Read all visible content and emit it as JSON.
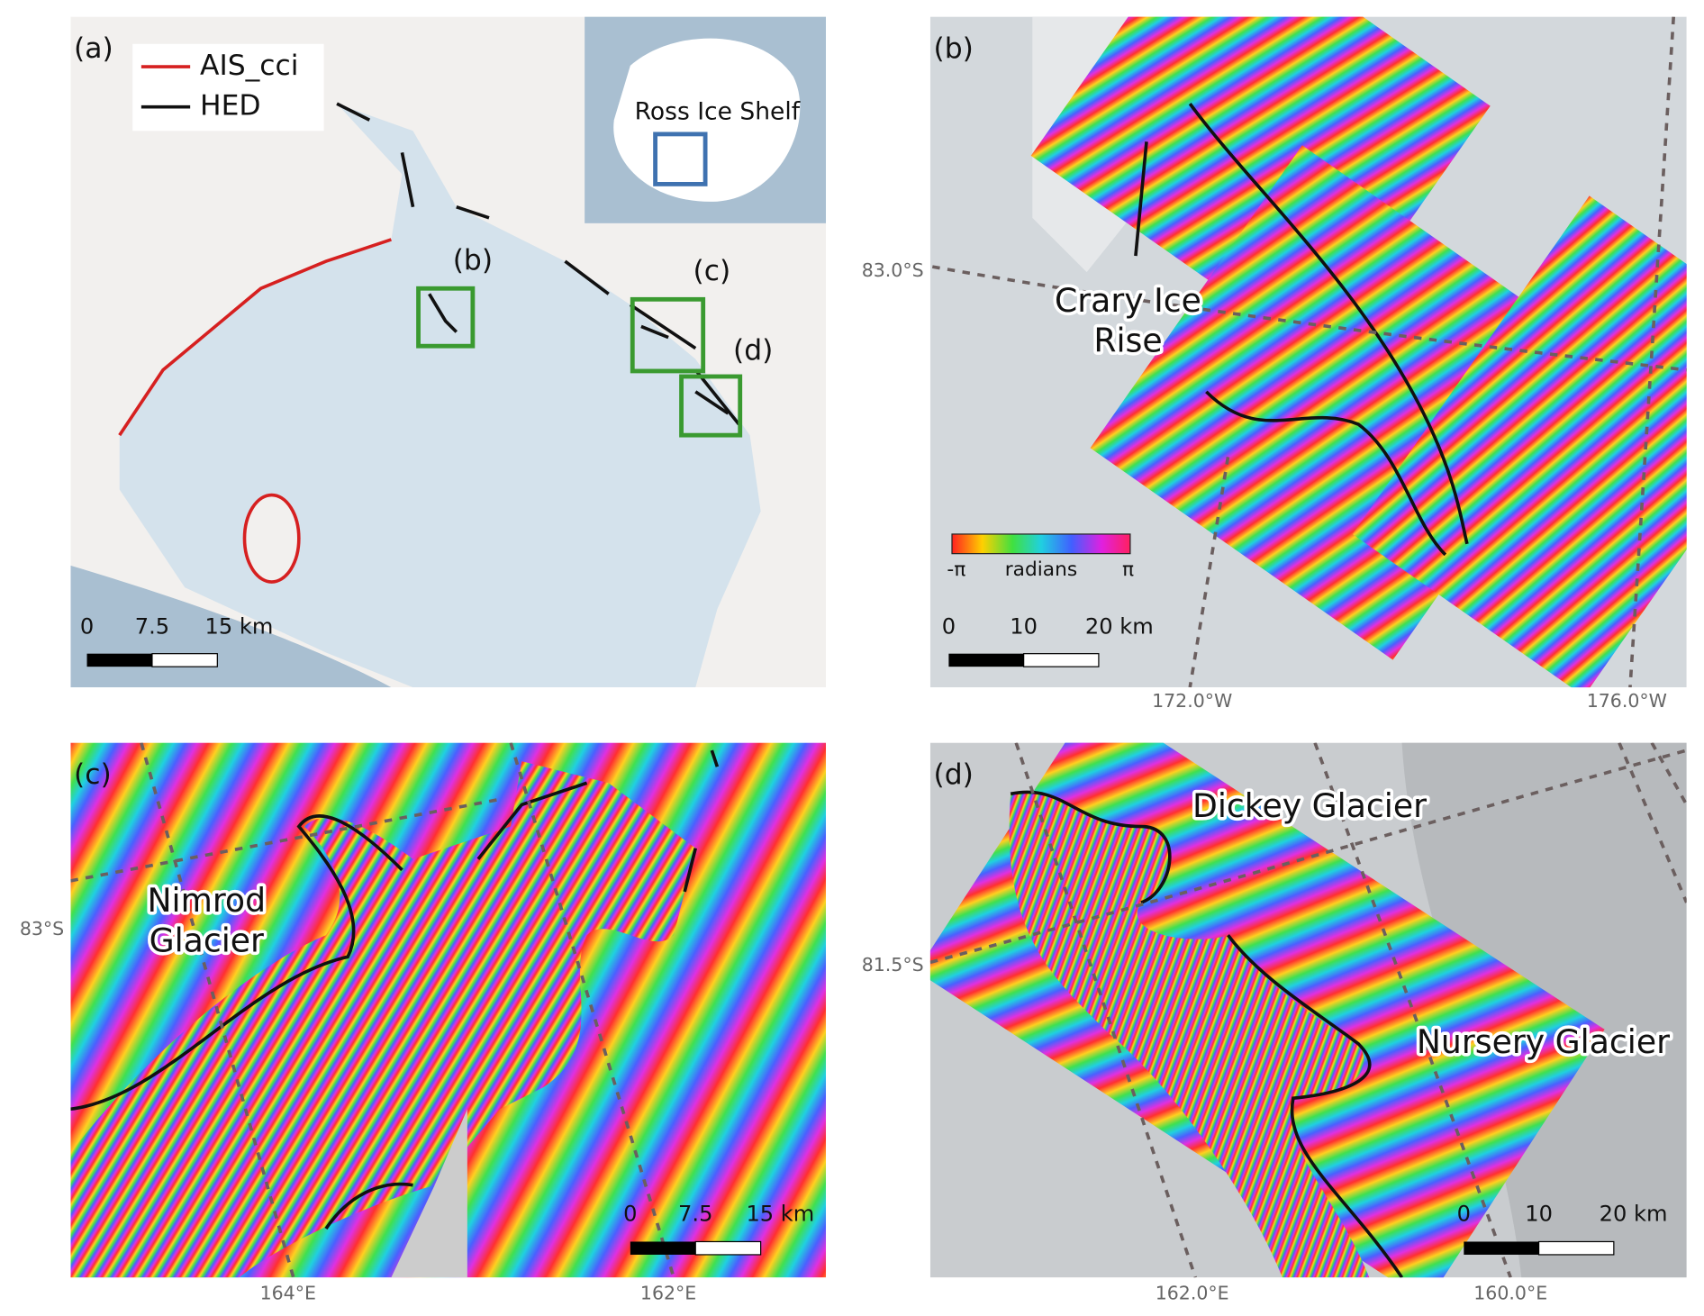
{
  "panels": [
    {
      "label": "(a)",
      "legend": [
        "AIS_cci",
        "HED"
      ],
      "inset_label": "Ross Ice Shelf",
      "box_labels": [
        "(b)",
        "(c)",
        "(d)"
      ],
      "scale_bar": [
        "0",
        "7.5",
        "15 km"
      ]
    },
    {
      "label": "(b)",
      "place": [
        "Crary Ice",
        "Rise"
      ],
      "colorbar": [
        "-π",
        "radians",
        "π"
      ],
      "scale_bar": [
        "0",
        "10",
        "20 km"
      ],
      "lat": [
        "83.0°S"
      ],
      "lon": [
        "172.0°W",
        "176.0°W"
      ]
    },
    {
      "label": "(c)",
      "place": [
        "Nimrod",
        "Glacier"
      ],
      "scale_bar": [
        "0",
        "7.5",
        "15 km"
      ],
      "lat": [
        "83°S"
      ],
      "lon": [
        "164°E",
        "162°E"
      ]
    },
    {
      "label": "(d)",
      "places": [
        "Dickey Glacier",
        "Nursery Glacier"
      ],
      "scale_bar": [
        "0",
        "10",
        "20 km"
      ],
      "lat": [
        "81.5°S"
      ],
      "lon": [
        "162.0°E",
        "160.0°E"
      ]
    }
  ]
}
